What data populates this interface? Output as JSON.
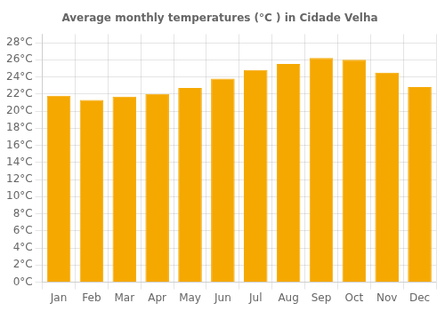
{
  "chart_data": {
    "type": "bar",
    "title": "Average monthly temperatures (°C ) in Cidade Velha",
    "categories": [
      "Jan",
      "Feb",
      "Mar",
      "Apr",
      "May",
      "Jun",
      "Jul",
      "Aug",
      "Sep",
      "Oct",
      "Nov",
      "Dec"
    ],
    "values": [
      21.8,
      21.3,
      21.7,
      22.0,
      22.7,
      23.8,
      24.8,
      25.5,
      26.2,
      26.0,
      24.5,
      22.8
    ],
    "color": "#F5A800",
    "ylim": [
      0,
      29
    ],
    "yticks": [
      {
        "value": 0,
        "label": "0°C"
      },
      {
        "value": 2,
        "label": "2°C"
      },
      {
        "value": 4,
        "label": "4°C"
      },
      {
        "value": 6,
        "label": "6°C"
      },
      {
        "value": 8,
        "label": "8°C"
      },
      {
        "value": 10,
        "label": "10°C"
      },
      {
        "value": 12,
        "label": "12°C"
      },
      {
        "value": 14,
        "label": "14°C"
      },
      {
        "value": 16,
        "label": "16°C"
      },
      {
        "value": 18,
        "label": "18°C"
      },
      {
        "value": 20,
        "label": "20°C"
      },
      {
        "value": 22,
        "label": "22°C"
      },
      {
        "value": 24,
        "label": "24°C"
      },
      {
        "value": 26,
        "label": "26°C"
      },
      {
        "value": 28,
        "label": "28°C"
      }
    ],
    "grid": true
  }
}
